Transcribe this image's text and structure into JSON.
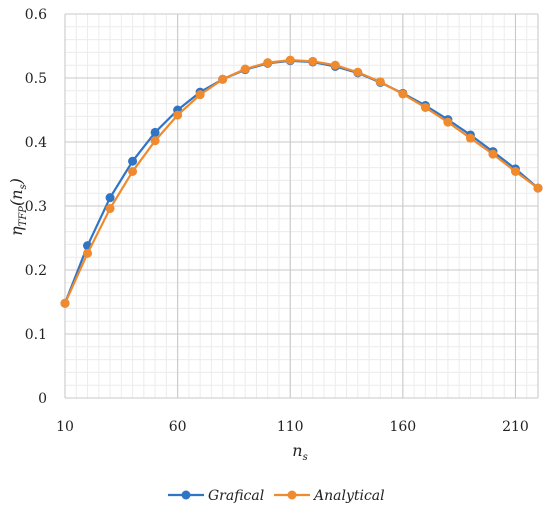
{
  "chart_data": {
    "type": "line",
    "xlabel_main": "n",
    "xlabel_sub": "s",
    "ylabel_parts": [
      "η",
      "TFP",
      "(n",
      "s",
      ")"
    ],
    "xlim": [
      10,
      220
    ],
    "ylim": [
      0,
      0.6
    ],
    "x_ticks": [
      10,
      60,
      110,
      160,
      210
    ],
    "x_tick_labels": [
      "10",
      "60",
      "110",
      "160",
      "210"
    ],
    "y_ticks": [
      0,
      0.1,
      0.2,
      0.3,
      0.4,
      0.5,
      0.6
    ],
    "y_tick_labels": [
      "0",
      "0.1",
      "0.2",
      "0.3",
      "0.4",
      "0.5",
      "0.6"
    ],
    "x_minor_step": 5,
    "y_minor_step": 0.02,
    "grid": true,
    "legend_position": "bottom",
    "series": [
      {
        "name": "Grafical",
        "color": "#2e75c6",
        "x": [
          10,
          20,
          30,
          40,
          50,
          60,
          70,
          80,
          90,
          100,
          110,
          120,
          130,
          140,
          150,
          160,
          170,
          180,
          190,
          200,
          210,
          220
        ],
        "y": [
          0.148,
          0.238,
          0.313,
          0.37,
          0.415,
          0.45,
          0.478,
          0.498,
          0.513,
          0.523,
          0.527,
          0.525,
          0.518,
          0.508,
          0.493,
          0.476,
          0.457,
          0.435,
          0.411,
          0.385,
          0.358,
          0.328
        ]
      },
      {
        "name": "Analytical",
        "color": "#f08a2e",
        "x": [
          10,
          20,
          30,
          40,
          50,
          60,
          70,
          80,
          90,
          100,
          110,
          120,
          130,
          140,
          150,
          160,
          170,
          180,
          190,
          200,
          210,
          220
        ],
        "y": [
          0.148,
          0.226,
          0.296,
          0.354,
          0.402,
          0.442,
          0.474,
          0.498,
          0.514,
          0.524,
          0.528,
          0.526,
          0.52,
          0.509,
          0.494,
          0.475,
          0.454,
          0.431,
          0.406,
          0.381,
          0.354,
          0.328
        ]
      }
    ]
  }
}
